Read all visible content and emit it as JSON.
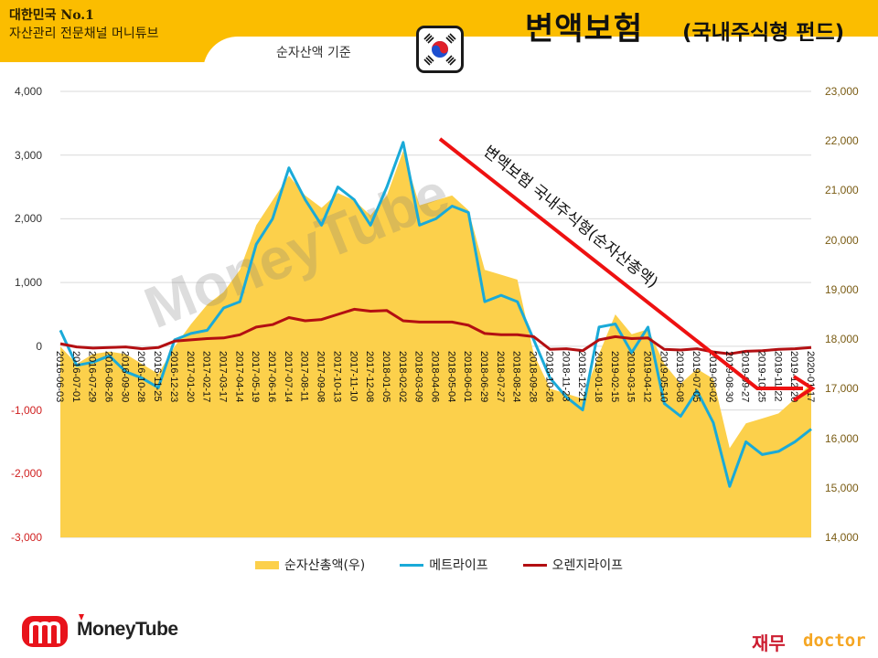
{
  "header": {
    "brand_line1": "대한민국 No.1",
    "brand_line2": "자산관리 전문채널 머니튜브",
    "subtitle": "순자산액 기준",
    "title": "변액보험",
    "title_sub": "(국내주식형 펀드)",
    "flag_icon": "korea-flag-icon"
  },
  "annotation": {
    "text": "변액보험 국내주식형(순자산총액)",
    "arrow_color": "#ee1111"
  },
  "legend": {
    "items": [
      {
        "label": "순자산총액(우)",
        "color": "#fcd04b",
        "kind": "area"
      },
      {
        "label": "메트라이프",
        "color": "#1aaad8",
        "kind": "line"
      },
      {
        "label": "오렌지라이프",
        "color": "#b30f12",
        "kind": "line"
      }
    ]
  },
  "footer": {
    "logo_left": "MoneyTube",
    "logo_right_kr": "재무",
    "logo_right_en": "doctor"
  },
  "colors": {
    "header_bg": "#fbbd00",
    "area": "#fcd04b",
    "metlife": "#1aaad8",
    "orange": "#b30f12",
    "grid": "#d9d9d9",
    "negative_tick": "#d02020",
    "right_tick": "#7a5c14"
  },
  "chart_data": {
    "type": "line",
    "title": "변액보험 (국내주식형 펀드) - 순자산액 기준",
    "xlabel": "",
    "ylabel_left": "",
    "ylabel_right": "",
    "ylim_left": [
      -3000,
      4000
    ],
    "ylim_right": [
      14000,
      23000
    ],
    "yticks_left": [
      "4,000",
      "3,000",
      "2,000",
      "1,000",
      "0",
      "-1,000",
      "-2,000",
      "-3,000"
    ],
    "yticks_right": [
      "23,000",
      "22,000",
      "21,000",
      "20,000",
      "19,000",
      "18,000",
      "17,000",
      "16,000",
      "15,000",
      "14,000"
    ],
    "grid": true,
    "legend_position": "bottom",
    "categories": [
      "2016-06-03",
      "2016-07-01",
      "2016-07-29",
      "2016-08-26",
      "2016-09-30",
      "2016-10-28",
      "2016-11-25",
      "2016-12-23",
      "2017-01-20",
      "2017-02-17",
      "2017-03-17",
      "2017-04-14",
      "2017-05-19",
      "2017-06-16",
      "2017-07-14",
      "2017-08-11",
      "2017-09-08",
      "2017-10-13",
      "2017-11-10",
      "2017-12-08",
      "2018-01-05",
      "2018-02-02",
      "2018-03-09",
      "2018-04-06",
      "2018-05-04",
      "2018-06-01",
      "2018-06-29",
      "2018-07-27",
      "2018-08-24",
      "2018-09-28",
      "2018-10-26",
      "2018-11-23",
      "2018-12-21",
      "2019-01-18",
      "2019-02-15",
      "2019-03-15",
      "2019-04-12",
      "2019-05-10",
      "2019-06-08",
      "2019-07-05",
      "2019-08-02",
      "2019-08-30",
      "2019-09-27",
      "2019-10-25",
      "2019-11-22",
      "2019-12-20",
      "2020-01-17"
    ],
    "series": [
      {
        "name": "순자산총액(우)",
        "axis": "right",
        "type": "area",
        "values": [
          17850,
          17500,
          17700,
          17750,
          17700,
          17500,
          17300,
          17850,
          18300,
          18700,
          18950,
          19400,
          20300,
          20800,
          21300,
          20900,
          20650,
          20950,
          20800,
          20500,
          20900,
          21800,
          20700,
          20800,
          20900,
          20600,
          19400,
          19300,
          19200,
          17700,
          17000,
          16900,
          16800,
          17700,
          18500,
          18100,
          18200,
          17500,
          17100,
          17400,
          17200,
          15800,
          16300,
          16400,
          16500,
          16800,
          17100
        ]
      },
      {
        "name": "메트라이프",
        "axis": "left",
        "type": "line",
        "values": [
          250,
          -300,
          -250,
          -150,
          -400,
          -500,
          -650,
          100,
          200,
          250,
          600,
          700,
          1600,
          2000,
          2800,
          2300,
          1900,
          2500,
          2300,
          1900,
          2500,
          3200,
          1900,
          2000,
          2200,
          2100,
          700,
          800,
          700,
          100,
          -500,
          -800,
          -1000,
          300,
          350,
          -100,
          300,
          -900,
          -1100,
          -700,
          -1200,
          -2200,
          -1500,
          -1700,
          -1650,
          -1500,
          -1300
        ]
      },
      {
        "name": "오렌지라이프",
        "axis": "left",
        "type": "line",
        "values": [
          40,
          -10,
          -30,
          -20,
          -10,
          -40,
          -20,
          80,
          100,
          120,
          130,
          180,
          300,
          340,
          450,
          400,
          420,
          500,
          580,
          550,
          560,
          400,
          380,
          380,
          380,
          330,
          200,
          180,
          180,
          150,
          -50,
          -40,
          -70,
          100,
          150,
          120,
          130,
          -50,
          -60,
          -40,
          -90,
          -120,
          -80,
          -70,
          -50,
          -40,
          -20
        ]
      }
    ]
  }
}
